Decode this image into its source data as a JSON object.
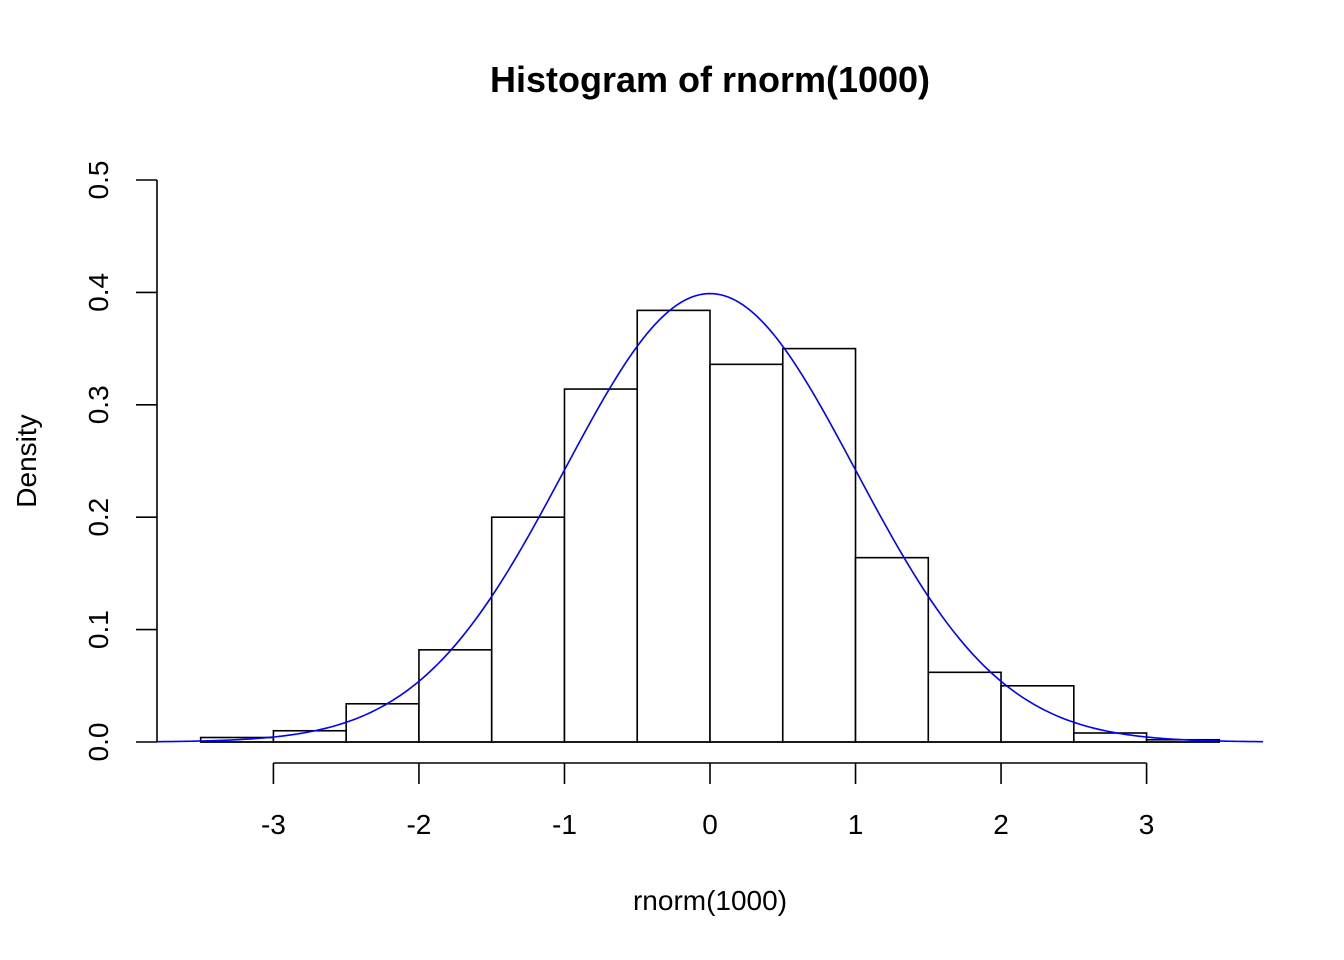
{
  "chart_data": {
    "type": "bar",
    "title": "Histogram of rnorm(1000)",
    "xlabel": "rnorm(1000)",
    "ylabel": "Density",
    "xlim": [
      -3.8,
      3.8
    ],
    "ylim": [
      0,
      0.5
    ],
    "x_ticks": [
      -3,
      -2,
      -1,
      0,
      1,
      2,
      3
    ],
    "x_tick_labels": [
      "-3",
      "-2",
      "-1",
      "0",
      "1",
      "2",
      "3"
    ],
    "y_ticks": [
      0,
      0.1,
      0.2,
      0.3,
      0.4,
      0.5
    ],
    "y_tick_labels": [
      "0.0",
      "0.1",
      "0.2",
      "0.3",
      "0.4",
      "0.5"
    ],
    "bins": [
      {
        "x0": -3.5,
        "x1": -3.0,
        "density": 0.004
      },
      {
        "x0": -3.0,
        "x1": -2.5,
        "density": 0.01
      },
      {
        "x0": -2.5,
        "x1": -2.0,
        "density": 0.034
      },
      {
        "x0": -2.0,
        "x1": -1.5,
        "density": 0.082
      },
      {
        "x0": -1.5,
        "x1": -1.0,
        "density": 0.2
      },
      {
        "x0": -1.0,
        "x1": -0.5,
        "density": 0.314
      },
      {
        "x0": -0.5,
        "x1": 0.0,
        "density": 0.384
      },
      {
        "x0": 0.0,
        "x1": 0.5,
        "density": 0.336
      },
      {
        "x0": 0.5,
        "x1": 1.0,
        "density": 0.35
      },
      {
        "x0": 1.0,
        "x1": 1.5,
        "density": 0.164
      },
      {
        "x0": 1.5,
        "x1": 2.0,
        "density": 0.062
      },
      {
        "x0": 2.0,
        "x1": 2.5,
        "density": 0.05
      },
      {
        "x0": 2.5,
        "x1": 3.0,
        "density": 0.008
      },
      {
        "x0": 3.0,
        "x1": 3.5,
        "density": 0.002
      }
    ],
    "overlay": {
      "type": "line",
      "function": "dnorm",
      "mean": 0,
      "sd": 1,
      "x_range": [
        -3.8,
        3.8
      ],
      "color": "#0000ff"
    },
    "bar_fill": "#ffffff",
    "bar_stroke": "#000000",
    "grid": false
  }
}
